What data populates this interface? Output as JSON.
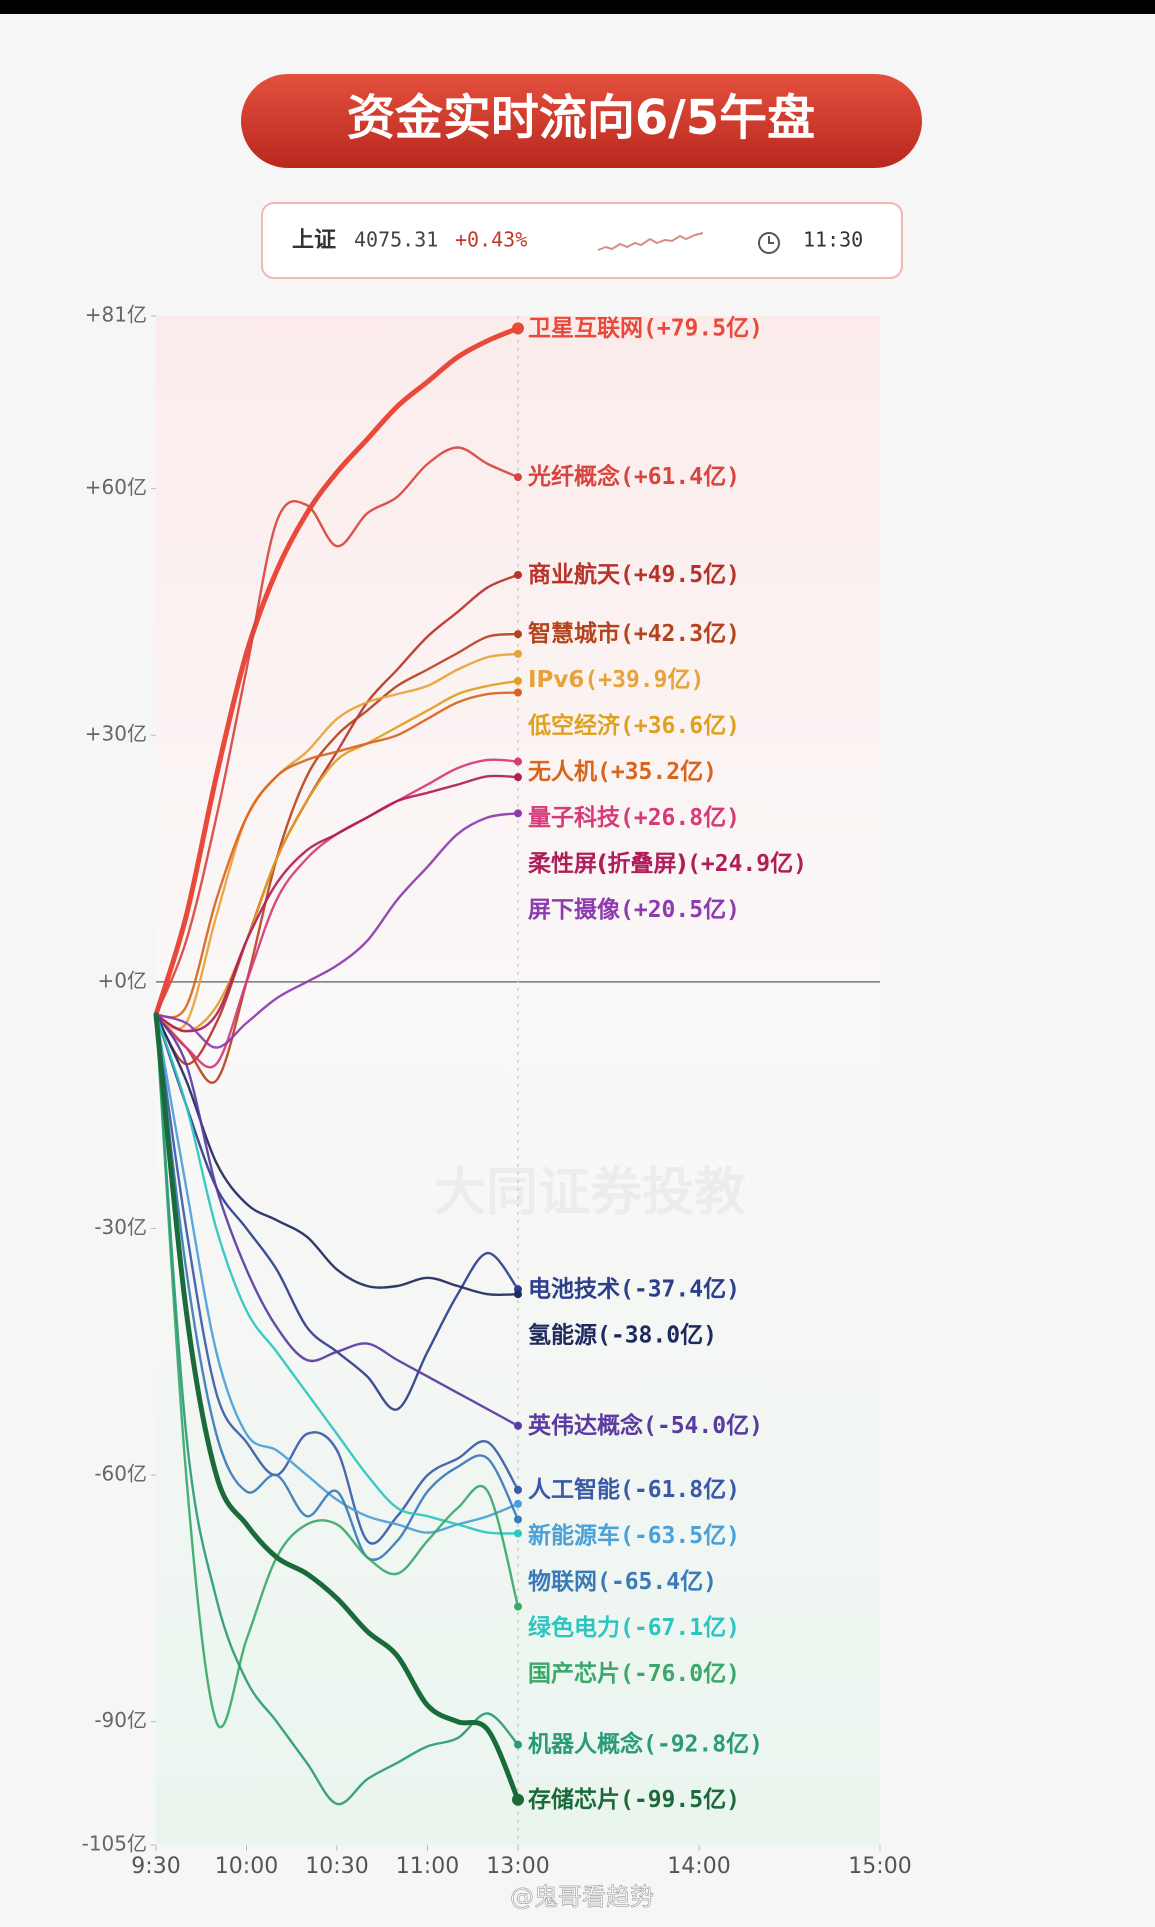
{
  "chart_data": {
    "type": "line",
    "title": "资金实时流向6/5午盘",
    "index_info": {
      "name": "上证",
      "value": "4075.31",
      "change": "+0.43%",
      "time": "11:30"
    },
    "watermark": "大同证券投教",
    "credit": "@鬼哥看趋势",
    "x": [
      0,
      10,
      20,
      30,
      40,
      50,
      60,
      70,
      80,
      90,
      100,
      110,
      120
    ],
    "xlim": [
      0,
      240
    ],
    "xticks": [
      {
        "value": 0,
        "label": "9:30"
      },
      {
        "value": 30,
        "label": "10:00"
      },
      {
        "value": 60,
        "label": "10:30"
      },
      {
        "value": 90,
        "label": "11:00"
      },
      {
        "value": 120,
        "label": "13:00"
      },
      {
        "value": 180,
        "label": "14:00"
      },
      {
        "value": 240,
        "label": "15:00"
      }
    ],
    "ylim": [
      -105,
      81
    ],
    "yticks": [
      {
        "value": 81,
        "label": "+81亿"
      },
      {
        "value": 60,
        "label": "+60亿"
      },
      {
        "value": 30,
        "label": "+30亿"
      },
      {
        "value": 0,
        "label": "+0亿"
      },
      {
        "value": -30,
        "label": "-30亿"
      },
      {
        "value": -60,
        "label": "-60亿"
      },
      {
        "value": -90,
        "label": "-90亿"
      },
      {
        "value": -105,
        "label": "-105亿"
      }
    ],
    "grid": false,
    "series": [
      {
        "name": "卫星互联网",
        "value_label": "(+79.5亿)",
        "color": "#e8493a",
        "bold": true,
        "values": [
          -4,
          8,
          25,
          40,
          50,
          57,
          62,
          66,
          70,
          73,
          76,
          78,
          79.5
        ]
      },
      {
        "name": "光纤概念",
        "value_label": "(+61.4亿)",
        "color": "#d9443f",
        "values": [
          -4,
          5,
          20,
          38,
          56,
          58,
          53,
          57,
          59,
          63,
          65,
          63,
          61.4
        ]
      },
      {
        "name": "商业航天",
        "value_label": "(+49.5亿)",
        "color": "#b8322a",
        "values": [
          -4,
          -10,
          -5,
          5,
          15,
          22,
          28,
          34,
          38,
          42,
          45,
          48,
          49.5
        ]
      },
      {
        "name": "智慧城市",
        "value_label": "(+42.3亿)",
        "color": "#b5441e",
        "values": [
          -4,
          -8,
          -12,
          0,
          15,
          25,
          30,
          33,
          36,
          38,
          40,
          42,
          42.3
        ]
      },
      {
        "name": "IPv6",
        "value_label": "(+39.9亿)",
        "color": "#e8a23a",
        "values": [
          -4,
          -5,
          8,
          20,
          25,
          28,
          32,
          34,
          35,
          36,
          38,
          39.5,
          39.9
        ]
      },
      {
        "name": "低空经济",
        "value_label": "(+36.6亿)",
        "color": "#e0a020",
        "values": [
          -4,
          -6,
          -3,
          5,
          15,
          22,
          27,
          29,
          31,
          33,
          35,
          36,
          36.6
        ]
      },
      {
        "name": "无人机",
        "value_label": "(+35.2亿)",
        "color": "#d9641c",
        "values": [
          -4,
          -3,
          10,
          20,
          25,
          27,
          28,
          29,
          30,
          32,
          34,
          35,
          35.2
        ]
      },
      {
        "name": "量子科技",
        "value_label": "(+26.8亿)",
        "color": "#d63a7a",
        "values": [
          -4,
          -8,
          -10,
          0,
          10,
          15,
          18,
          20,
          22,
          24,
          26,
          27,
          26.8
        ]
      },
      {
        "name": "柔性屏(折叠屏)",
        "value_label": "(+24.9亿)",
        "color": "#b01e5a",
        "values": [
          -4,
          -6,
          -4,
          5,
          12,
          16,
          18,
          20,
          22,
          23,
          24,
          25,
          24.9
        ]
      },
      {
        "name": "屏下摄像",
        "value_label": "(+20.5亿)",
        "color": "#8e3ab0",
        "values": [
          -4,
          -5,
          -8,
          -5,
          -2,
          0,
          2,
          5,
          10,
          14,
          18,
          20,
          20.5
        ]
      },
      {
        "name": "电池技术",
        "value_label": "(-37.4亿)",
        "color": "#2c3e8c",
        "values": [
          -4,
          -15,
          -25,
          -30,
          -35,
          -42,
          -45,
          -48,
          -52,
          -45,
          -38,
          -33,
          -37.4
        ]
      },
      {
        "name": "氢能源",
        "value_label": "(-38.0亿)",
        "color": "#1e2a5e",
        "values": [
          -4,
          -12,
          -22,
          -27,
          -29,
          -31,
          -35,
          -37,
          -37,
          -36,
          -37,
          -38,
          -38.0
        ]
      },
      {
        "name": "英伟达概念",
        "value_label": "(-54.0亿)",
        "color": "#5a3aa0",
        "values": [
          -4,
          -10,
          -25,
          -35,
          -42,
          -46,
          -45,
          -44,
          -46,
          -48,
          -50,
          -52,
          -54.0
        ]
      },
      {
        "name": "人工智能",
        "value_label": "(-61.8亿)",
        "color": "#3a5aa8",
        "values": [
          -4,
          -30,
          -50,
          -56,
          -60,
          -55,
          -57,
          -68,
          -65,
          -60,
          -58,
          -56,
          -61.8
        ]
      },
      {
        "name": "新能源车",
        "value_label": "(-63.5亿)",
        "color": "#4aa0d8",
        "values": [
          -4,
          -25,
          -45,
          -55,
          -57,
          -60,
          -63,
          -65,
          -66,
          -67,
          -66,
          -65,
          -63.5
        ]
      },
      {
        "name": "物联网",
        "value_label": "(-65.4亿)",
        "color": "#3a7ab8",
        "values": [
          -4,
          -35,
          -55,
          -62,
          -60,
          -65,
          -62,
          -70,
          -68,
          -62,
          -59,
          -58,
          -65.4
        ]
      },
      {
        "name": "绿色电力",
        "value_label": "(-67.1亿)",
        "color": "#2ec4c0",
        "values": [
          -4,
          -15,
          -30,
          -40,
          -45,
          -50,
          -55,
          -60,
          -64,
          -65,
          -66,
          -67,
          -67.1
        ]
      },
      {
        "name": "国产芯片",
        "value_label": "(-76.0亿)",
        "color": "#3aa86a",
        "values": [
          -4,
          -60,
          -90,
          -80,
          -70,
          -66,
          -66,
          -70,
          -72,
          -68,
          -64,
          -62,
          -76.0
        ]
      },
      {
        "name": "机器人概念",
        "value_label": "(-92.8亿)",
        "color": "#2a9a7a",
        "values": [
          -4,
          -55,
          -75,
          -85,
          -90,
          -95,
          -100,
          -97,
          -95,
          -93,
          -92,
          -89,
          -92.8
        ]
      },
      {
        "name": "存储芯片",
        "value_label": "(-99.5亿)",
        "color": "#1a6a3a",
        "bold": true,
        "values": [
          -4,
          -40,
          -60,
          -66,
          -70,
          -72,
          -75,
          -79,
          -82,
          -88,
          -90,
          -91,
          -99.5
        ]
      }
    ]
  }
}
